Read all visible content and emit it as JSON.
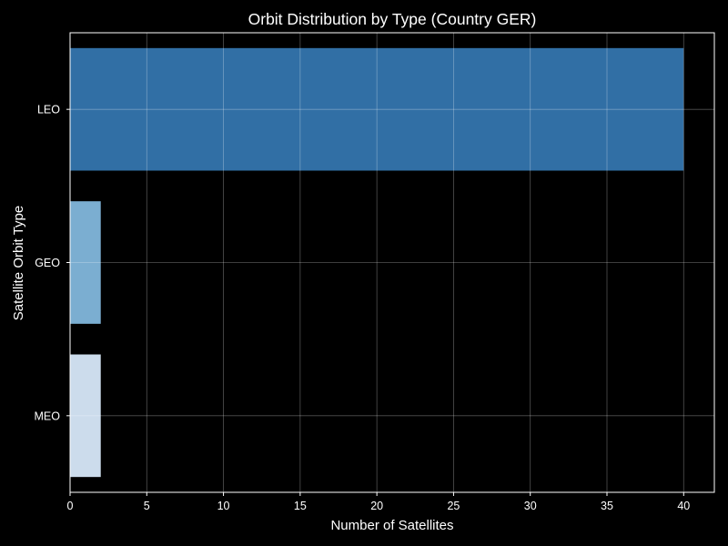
{
  "colors": {
    "background": "#000000",
    "text": "#ffffff"
  },
  "chart_data": {
    "type": "bar",
    "orientation": "horizontal",
    "title": "Orbit Distribution by Type (Country GER)",
    "xlabel": "Number of Satellites",
    "ylabel": "Satellite Orbit Type",
    "categories": [
      "LEO",
      "GEO",
      "MEO"
    ],
    "values": [
      40,
      2,
      2
    ],
    "colors": [
      "#316FA5",
      "#7BAED1",
      "#CCDCEC"
    ],
    "xlim": [
      0,
      42
    ],
    "xticks": [
      0,
      5,
      10,
      15,
      20,
      25,
      30,
      35,
      40
    ],
    "grid": true,
    "legend": "none"
  }
}
